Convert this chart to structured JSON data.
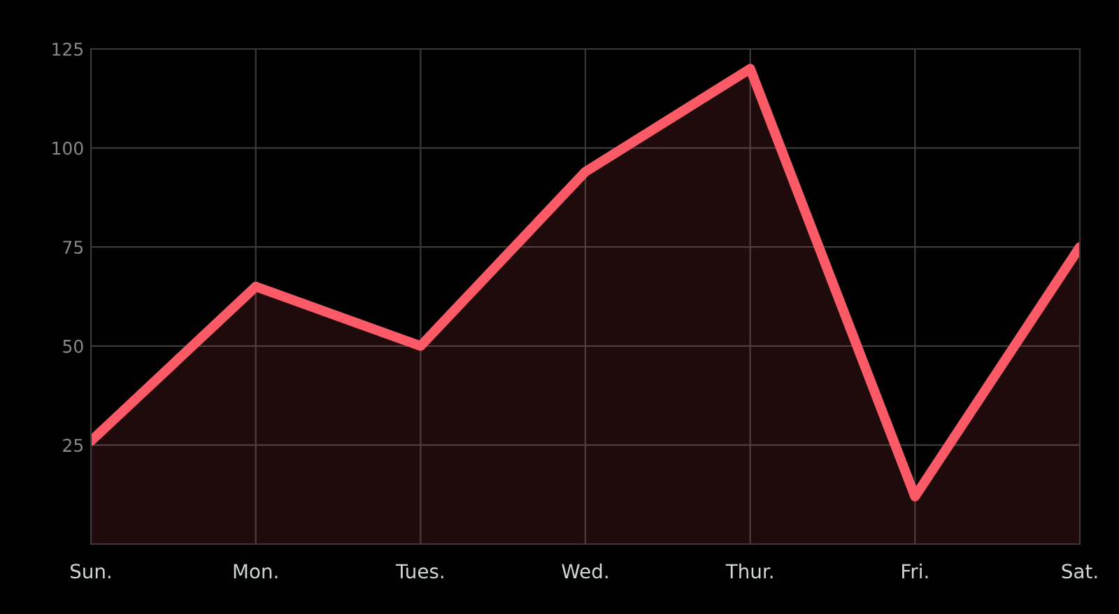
{
  "chart_data": {
    "type": "area",
    "categories": [
      "Sun.",
      "Mon.",
      "Tues.",
      "Wed.",
      "Thur.",
      "Fri.",
      "Sat."
    ],
    "series": [
      {
        "color": "#fb5a66",
        "values": [
          26,
          65,
          50,
          94,
          120,
          12,
          75
        ]
      }
    ],
    "ylim": [
      0,
      125
    ],
    "yticks": [
      25,
      50,
      75,
      100,
      125
    ],
    "grid": true
  }
}
